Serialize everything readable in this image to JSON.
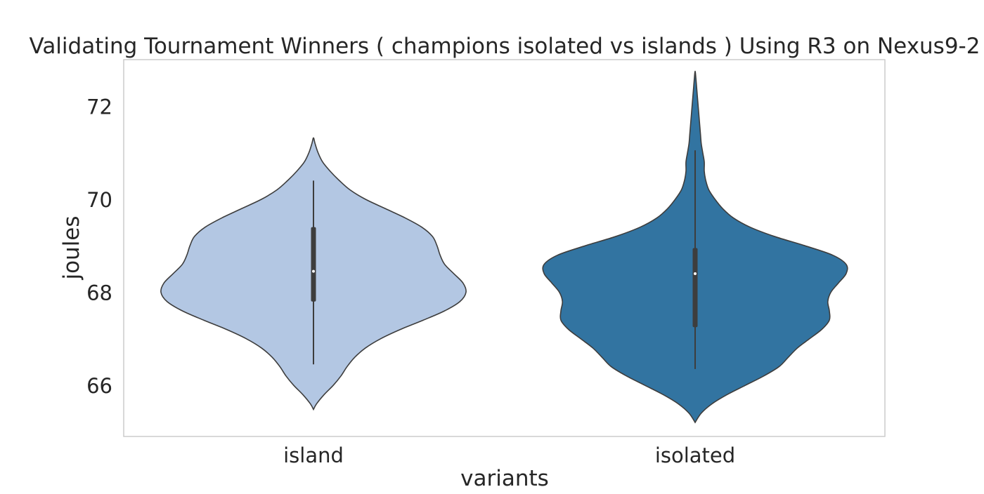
{
  "chart_data": {
    "type": "violin",
    "title": "Validating Tournament Winners ( champions isolated vs islands ) Using R3 on Nexus9-2",
    "xlabel": "variants",
    "ylabel": "joules",
    "ylim": [
      64.9,
      73.0
    ],
    "yticks": [
      66,
      68,
      70,
      72
    ],
    "grid": false,
    "categories": [
      "island",
      "isolated"
    ],
    "series": [
      {
        "category": "island",
        "color": "#b3c7e3",
        "box": {
          "whisker_low": 66.45,
          "q1": 67.8,
          "median": 68.45,
          "q3": 69.4,
          "whisker_high": 70.4
        },
        "profile": [
          [
            65.48,
            0.0
          ],
          [
            65.6,
            0.02
          ],
          [
            65.8,
            0.07
          ],
          [
            66.0,
            0.13
          ],
          [
            66.2,
            0.18
          ],
          [
            66.4,
            0.22
          ],
          [
            66.6,
            0.27
          ],
          [
            66.8,
            0.34
          ],
          [
            67.0,
            0.44
          ],
          [
            67.2,
            0.57
          ],
          [
            67.4,
            0.72
          ],
          [
            67.6,
            0.86
          ],
          [
            67.8,
            0.96
          ],
          [
            68.0,
            1.0
          ],
          [
            68.2,
            0.98
          ],
          [
            68.4,
            0.92
          ],
          [
            68.6,
            0.86
          ],
          [
            68.8,
            0.83
          ],
          [
            69.0,
            0.81
          ],
          [
            69.2,
            0.78
          ],
          [
            69.4,
            0.71
          ],
          [
            69.6,
            0.6
          ],
          [
            69.8,
            0.47
          ],
          [
            70.0,
            0.34
          ],
          [
            70.2,
            0.24
          ],
          [
            70.4,
            0.17
          ],
          [
            70.6,
            0.11
          ],
          [
            70.8,
            0.06
          ],
          [
            71.0,
            0.03
          ],
          [
            71.2,
            0.01
          ],
          [
            71.32,
            0.0
          ]
        ]
      },
      {
        "category": "isolated",
        "color": "#3274a1",
        "box": {
          "whisker_low": 66.35,
          "q1": 67.25,
          "median": 68.4,
          "q3": 68.95,
          "whisker_high": 71.05
        },
        "profile": [
          [
            65.2,
            0.0
          ],
          [
            65.4,
            0.04
          ],
          [
            65.6,
            0.11
          ],
          [
            65.8,
            0.21
          ],
          [
            66.0,
            0.33
          ],
          [
            66.2,
            0.45
          ],
          [
            66.4,
            0.55
          ],
          [
            66.6,
            0.61
          ],
          [
            66.8,
            0.67
          ],
          [
            67.0,
            0.75
          ],
          [
            67.2,
            0.83
          ],
          [
            67.4,
            0.88
          ],
          [
            67.6,
            0.88
          ],
          [
            67.8,
            0.87
          ],
          [
            68.0,
            0.89
          ],
          [
            68.2,
            0.94
          ],
          [
            68.4,
            0.99
          ],
          [
            68.6,
            0.99
          ],
          [
            68.8,
            0.9
          ],
          [
            69.0,
            0.72
          ],
          [
            69.2,
            0.52
          ],
          [
            69.4,
            0.36
          ],
          [
            69.6,
            0.25
          ],
          [
            69.8,
            0.18
          ],
          [
            70.0,
            0.13
          ],
          [
            70.2,
            0.09
          ],
          [
            70.4,
            0.07
          ],
          [
            70.6,
            0.06
          ],
          [
            70.8,
            0.06
          ],
          [
            71.0,
            0.05
          ],
          [
            71.2,
            0.04
          ],
          [
            71.4,
            0.035
          ],
          [
            71.6,
            0.03
          ],
          [
            71.8,
            0.025
          ],
          [
            72.0,
            0.02
          ],
          [
            72.2,
            0.015
          ],
          [
            72.4,
            0.01
          ],
          [
            72.6,
            0.005
          ],
          [
            72.75,
            0.0
          ]
        ]
      }
    ]
  }
}
